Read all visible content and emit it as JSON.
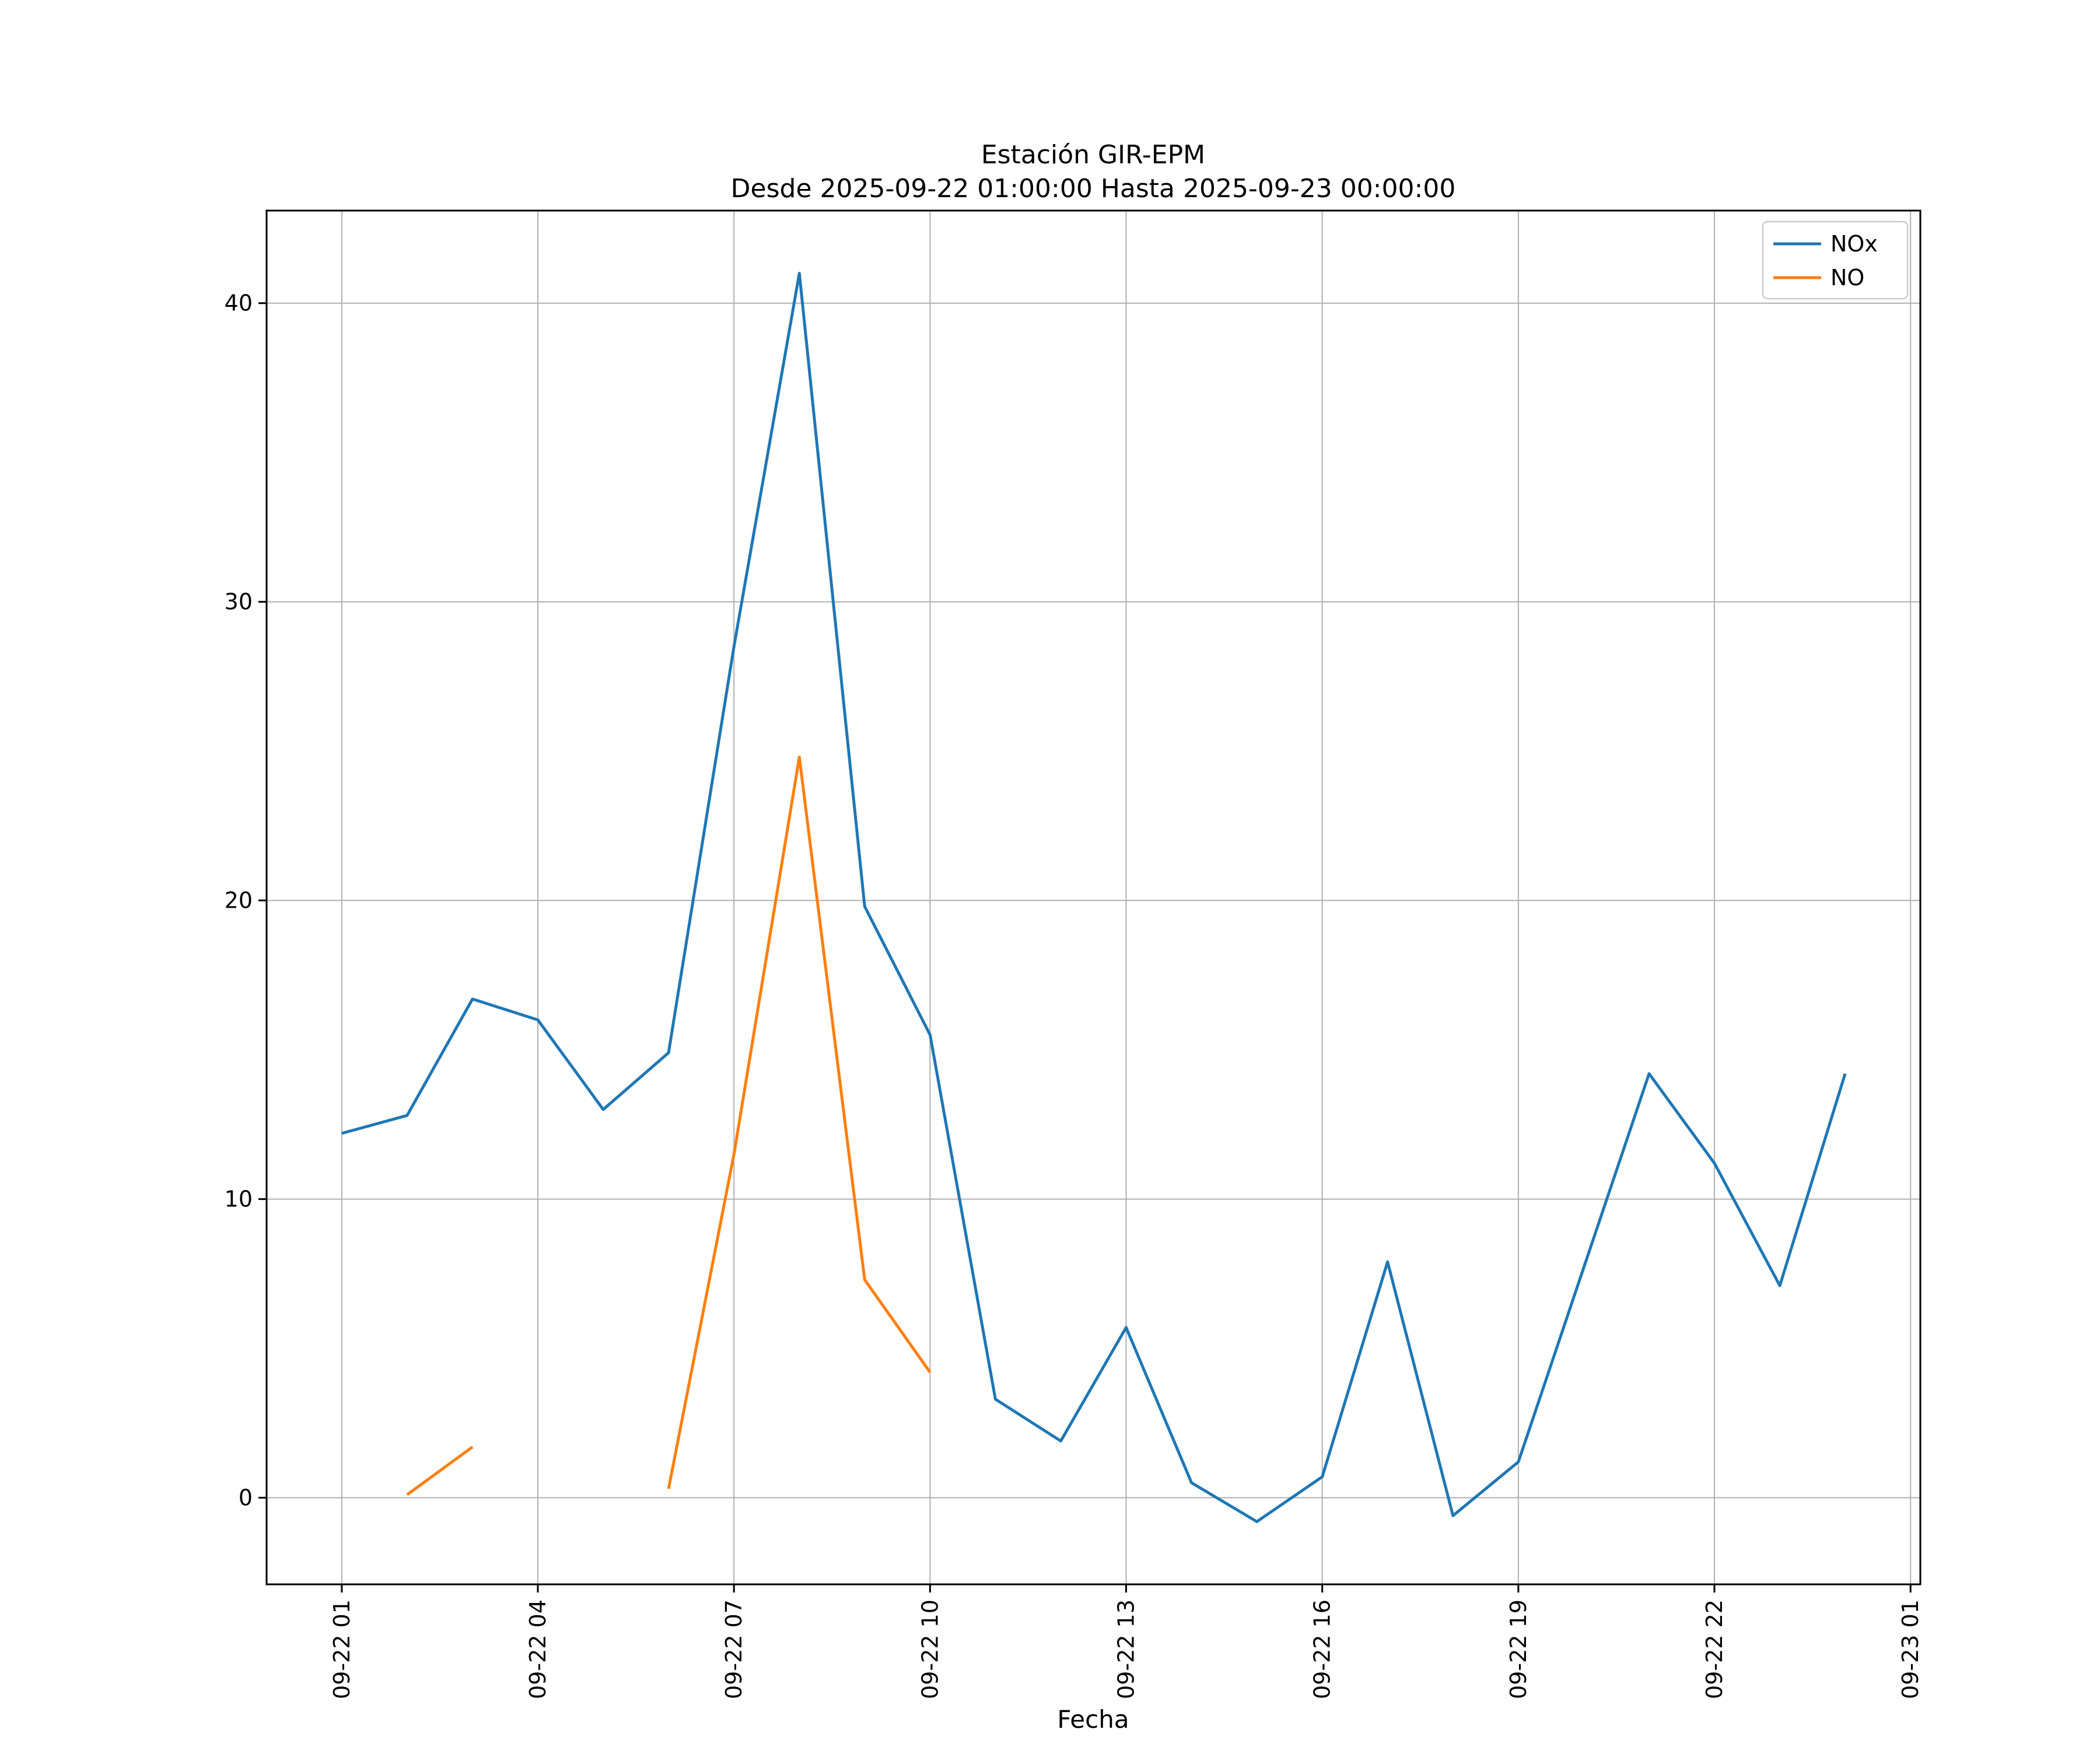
{
  "figure": {
    "title_line1": "Estación GIR-EPM",
    "title_line2": "Desde 2025-09-22 01:00:00 Hasta 2025-09-23 00:00:00",
    "xlabel": "Fecha"
  },
  "chart_data": {
    "type": "line",
    "title": "Estación GIR-EPM",
    "subtitle": "Desde 2025-09-22 01:00:00 Hasta 2025-09-23 00:00:00",
    "xlabel": "Fecha",
    "ylabel": "",
    "grid": true,
    "grid_color": "#b0b0b0",
    "legend_position": "upper right",
    "legend_entries": [
      "NOx",
      "NO"
    ],
    "x_hours": [
      1,
      2,
      3,
      4,
      5,
      6,
      7,
      8,
      9,
      10,
      11,
      12,
      13,
      14,
      15,
      16,
      17,
      18,
      19,
      20,
      21,
      22,
      23,
      24
    ],
    "x_tick_hours": [
      1,
      4,
      7,
      10,
      13,
      16,
      19,
      22,
      25
    ],
    "x_tick_labels": [
      "09-22 01",
      "09-22 04",
      "09-22 07",
      "09-22 10",
      "09-22 13",
      "09-22 16",
      "09-22 19",
      "09-22 22",
      "09-23 01"
    ],
    "y_ticks": [
      0,
      10,
      20,
      30,
      40
    ],
    "xlim": [
      -0.15,
      25.15
    ],
    "ylim": [
      -2.9,
      43.1
    ],
    "series": [
      {
        "name": "NOx",
        "color": "#1f77b4",
        "values": [
          12.2,
          12.8,
          16.7,
          16.0,
          13.0,
          14.9,
          28.5,
          41.0,
          19.8,
          15.5,
          3.3,
          1.9,
          5.7,
          0.5,
          -0.8,
          0.7,
          7.9,
          -0.6,
          1.2,
          7.7,
          14.2,
          11.2,
          7.1,
          14.2
        ]
      },
      {
        "name": "NO",
        "color": "#ff7f0e",
        "values": [
          null,
          0.1,
          1.7,
          null,
          null,
          0.3,
          11.5,
          24.8,
          7.3,
          4.2,
          null,
          null,
          null,
          null,
          null,
          null,
          null,
          null,
          null,
          null,
          null,
          null,
          null,
          null
        ]
      }
    ]
  }
}
